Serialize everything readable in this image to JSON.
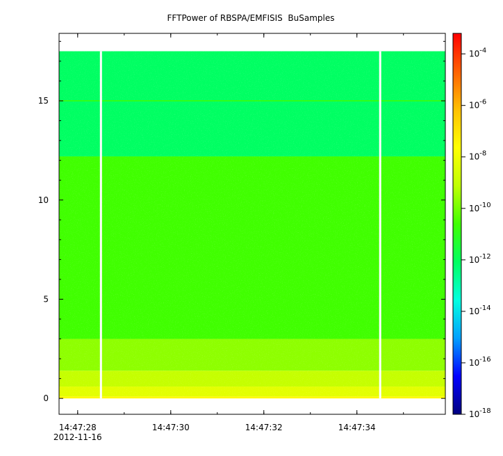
{
  "chart_data": {
    "type": "heatmap",
    "title": "FFTPower of RBSPA/EMFISIS  BuSamples",
    "x": {
      "ticks": [
        {
          "value": 28,
          "label": "14:47:28",
          "sublabel": "2012-11-16"
        },
        {
          "value": 30,
          "label": "14:47:30"
        },
        {
          "value": 32,
          "label": "14:47:32"
        },
        {
          "value": 34,
          "label": "14:47:34"
        }
      ],
      "minor_ticks": [
        28,
        29,
        30,
        31,
        32,
        33,
        34,
        35
      ],
      "range": [
        27.6,
        35.9
      ]
    },
    "y": {
      "ticks": [
        {
          "value": 0,
          "label": "0"
        },
        {
          "value": 5,
          "label": "5"
        },
        {
          "value": 10,
          "label": "10"
        },
        {
          "value": 15,
          "label": "15"
        }
      ],
      "minor_ticks": [
        1,
        2,
        3,
        4,
        6,
        7,
        8,
        9,
        11,
        12,
        13,
        14,
        16,
        17,
        18
      ],
      "range": [
        -0.8,
        18.4
      ]
    },
    "data_extent": {
      "x": [
        27.6,
        35.9
      ],
      "y": [
        0,
        17.5
      ]
    },
    "gaps_x": [
      28.5,
      34.5
    ],
    "colorbar": {
      "scale": "log",
      "range_exp": [
        -18,
        -3.2
      ],
      "ticks": [
        {
          "base": "10",
          "exp": "-4",
          "value_exp": -4
        },
        {
          "base": "10",
          "exp": "-6",
          "value_exp": -6
        },
        {
          "base": "10",
          "exp": "-8",
          "value_exp": -8
        },
        {
          "base": "10",
          "exp": "-10",
          "value_exp": -10
        },
        {
          "base": "10",
          "exp": "-12",
          "value_exp": -12
        },
        {
          "base": "10",
          "exp": "-14",
          "value_exp": -14
        },
        {
          "base": "10",
          "exp": "-16",
          "value_exp": -16
        },
        {
          "base": "10",
          "exp": "-18",
          "value_exp": -18
        }
      ],
      "colors": [
        "#00007f",
        "#0000ff",
        "#00a0ff",
        "#00ffe0",
        "#00ff60",
        "#40ff00",
        "#c0ff00",
        "#ffff00",
        "#ffc000",
        "#ff6000",
        "#ff0000"
      ]
    },
    "bands": [
      {
        "y": [
          0,
          0.1
        ],
        "level_exp": -7.5
      },
      {
        "y": [
          0.1,
          0.6
        ],
        "level_exp": -8.3
      },
      {
        "y": [
          0.6,
          1.4
        ],
        "level_exp": -9.0
      },
      {
        "y": [
          1.4,
          3.0
        ],
        "level_exp": -9.7
      },
      {
        "y": [
          3.0,
          12.2
        ],
        "level_exp": -10.6
      },
      {
        "y": [
          12.2,
          17.5
        ],
        "level_exp": -12.1
      }
    ],
    "line_15": {
      "y": 15.0,
      "level_exp": -11.0
    }
  }
}
